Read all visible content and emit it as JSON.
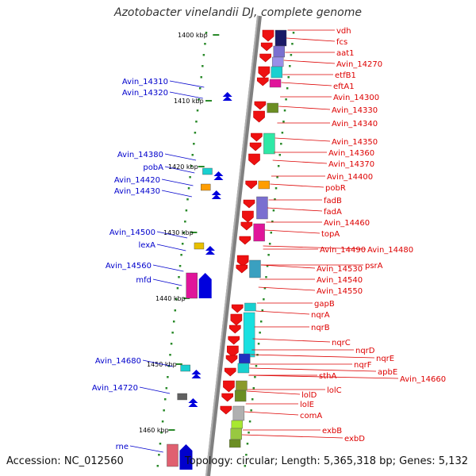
{
  "header": {
    "title": "Azotobacter vinelandii DJ, complete genome"
  },
  "footer": {
    "accession": "Accession: NC_012560",
    "topology": "Topology: circular; Length: 5,365,318 bp; Genes: 5,132"
  },
  "map": {
    "colors": {
      "right_label": "#dd0000",
      "left_label": "#0000cc",
      "backbone": "#808080",
      "tick": "#2a8a2a"
    },
    "ticks": [
      "1400 kbp",
      "1410 kbp",
      "1420 kbp",
      "1430 kbp",
      "1440 kbp",
      "1450 kbp",
      "1460 kbp"
    ],
    "right_genes": [
      "vdh",
      "fcs",
      "aat1",
      "Avin_14270",
      "etfB1",
      "eftA1",
      "Avin_14300",
      "Avin_14330",
      "Avin_14340",
      "Avin_14350",
      "Avin_14360",
      "Avin_14370",
      "Avin_14400",
      "pobR",
      "fadB",
      "fadA",
      "Avin_14460",
      "topA",
      "Avin_14490",
      "Avin_14480",
      "psrA",
      "Avin_14530",
      "Avin_14540",
      "Avin_14550",
      "gapB",
      "nqrA",
      "nqrB",
      "nqrC",
      "nqrD",
      "nqrE",
      "nqrF",
      "apbE",
      "sthA",
      "Avin_14660",
      "lolC",
      "lolD",
      "lolE",
      "comA",
      "exbB",
      "exbD"
    ],
    "left_genes": [
      "Avin_14310",
      "Avin_14320",
      "Avin_14380",
      "pobA",
      "Avin_14420",
      "Avin_14430",
      "Avin_14500",
      "lexA",
      "Avin_14560",
      "mfd",
      "Avin_14680",
      "Avin_14720",
      "rne"
    ]
  }
}
